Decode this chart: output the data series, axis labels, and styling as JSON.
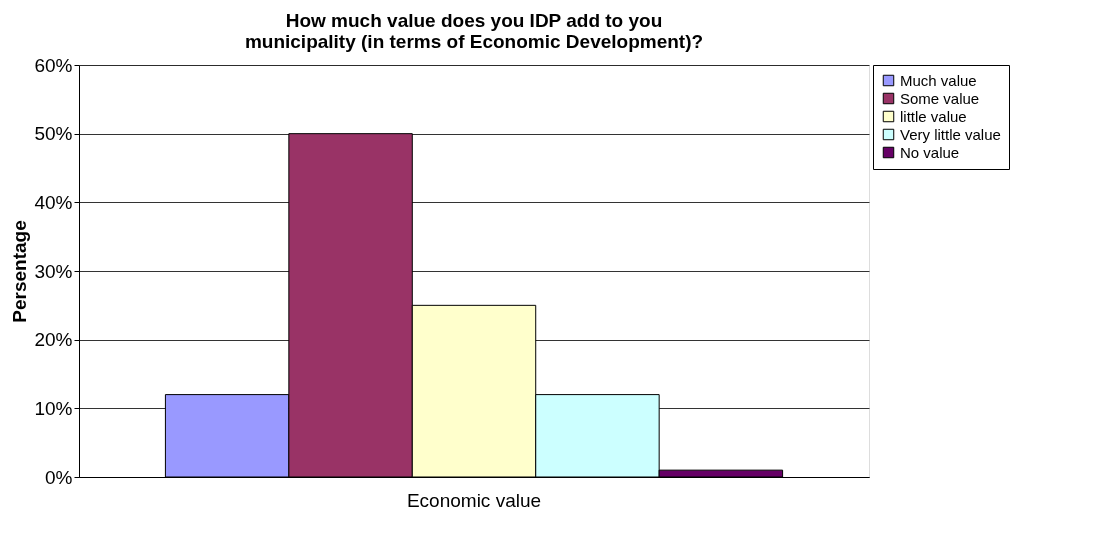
{
  "chart_data": {
    "type": "bar",
    "title": "How much value does you IDP add to you municipality (in terms of Economic Development)?",
    "ylabel": "Persentage",
    "categories": [
      "Economic value"
    ],
    "series": [
      {
        "name": "Much value",
        "color": "#9999ff",
        "values": [
          12
        ]
      },
      {
        "name": "Some value",
        "color": "#993366",
        "values": [
          50
        ]
      },
      {
        "name": "little value",
        "color": "#ffffcc",
        "values": [
          25
        ]
      },
      {
        "name": "Very little value",
        "color": "#ccffff",
        "values": [
          12
        ]
      },
      {
        "name": "No value",
        "color": "#660066",
        "values": [
          1
        ]
      }
    ],
    "ylim": [
      0,
      60
    ],
    "yticks": [
      {
        "value": 0,
        "label": "0%"
      },
      {
        "value": 10,
        "label": "10%"
      },
      {
        "value": 20,
        "label": "20%"
      },
      {
        "value": 30,
        "label": "30%"
      },
      {
        "value": 40,
        "label": "40%"
      },
      {
        "value": 50,
        "label": "50%"
      },
      {
        "value": 60,
        "label": "60%"
      }
    ],
    "grid": "y",
    "legend": "right"
  }
}
